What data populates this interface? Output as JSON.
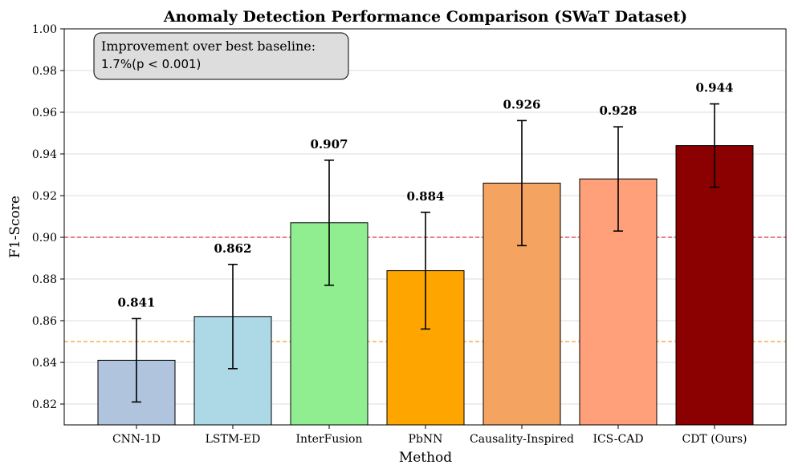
{
  "chart_data": {
    "type": "bar",
    "title": "Anomaly Detection Performance Comparison (SWaT Dataset)",
    "xlabel": "Method",
    "ylabel": "F1-Score",
    "ylim": [
      0.81,
      1.0
    ],
    "yticks": [
      0.82,
      0.84,
      0.86,
      0.88,
      0.9,
      0.92,
      0.94,
      0.96,
      0.98,
      1.0
    ],
    "ytick_labels": [
      "0.82",
      "0.84",
      "0.86",
      "0.88",
      "0.90",
      "0.92",
      "0.94",
      "0.96",
      "0.98",
      "1.00"
    ],
    "grid": "y",
    "categories": [
      "CNN-1D",
      "LSTM-ED",
      "InterFusion",
      "PbNN",
      "Causality-Inspired",
      "ICS-CAD",
      "CDT (Ours)"
    ],
    "values": [
      0.841,
      0.862,
      0.907,
      0.884,
      0.926,
      0.928,
      0.944
    ],
    "errors": [
      0.02,
      0.025,
      0.03,
      0.028,
      0.03,
      0.025,
      0.02
    ],
    "value_labels": [
      "0.841",
      "0.862",
      "0.907",
      "0.884",
      "0.926",
      "0.928",
      "0.944"
    ],
    "colors": [
      "#b0c4de",
      "#add8e6",
      "#90ee90",
      "#ffa500",
      "#f4a460",
      "#ffa07a",
      "#8b0000"
    ],
    "reference_lines": [
      {
        "value": 0.9,
        "color": "#e03030"
      },
      {
        "value": 0.85,
        "color": "#f0a020"
      }
    ],
    "annotation": {
      "line1": "Improvement over best baseline:",
      "line2": "1.7%(p < 0.001)",
      "placement": "top-left"
    }
  }
}
